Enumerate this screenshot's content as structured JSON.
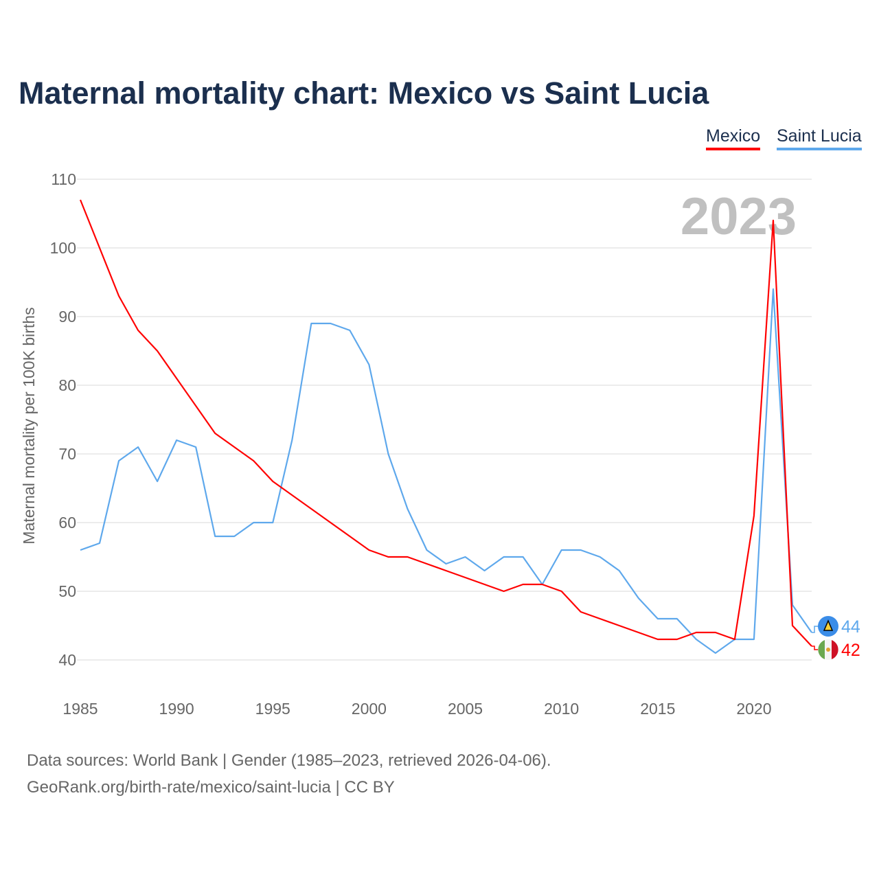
{
  "title": "Maternal mortality chart: Mexico vs Saint Lucia",
  "footer": {
    "line1": "Data sources: World Bank | Gender (1985–2023, retrieved 2026-04-06).",
    "line2": "GeoRank.org/birth-rate/mexico/saint-lucia | CC BY"
  },
  "chart_data": {
    "type": "line",
    "title": "Maternal mortality chart: Mexico vs Saint Lucia",
    "ylabel": "Maternal mortality per 100K births",
    "xlabel": "",
    "year_watermark": "2023",
    "xlim": [
      1985,
      2023
    ],
    "ylim": [
      40,
      110
    ],
    "xticks": [
      1985,
      1990,
      1995,
      2000,
      2005,
      2010,
      2015,
      2020
    ],
    "yticks": [
      40,
      50,
      60,
      70,
      80,
      90,
      100,
      110
    ],
    "grid": true,
    "legend_position": "top-right",
    "x": [
      1985,
      1986,
      1987,
      1988,
      1989,
      1990,
      1991,
      1992,
      1993,
      1994,
      1995,
      1996,
      1997,
      1998,
      1999,
      2000,
      2001,
      2002,
      2003,
      2004,
      2005,
      2006,
      2007,
      2008,
      2009,
      2010,
      2011,
      2012,
      2013,
      2014,
      2015,
      2016,
      2017,
      2018,
      2019,
      2020,
      2021,
      2022,
      2023
    ],
    "series": [
      {
        "name": "Mexico",
        "color": "#ff0000",
        "end_label": "42",
        "flag": "mexico-flag",
        "values": [
          107,
          100,
          93,
          88,
          85,
          81,
          77,
          73,
          71,
          69,
          66,
          64,
          62,
          60,
          58,
          56,
          55,
          55,
          54,
          53,
          52,
          51,
          50,
          51,
          51,
          50,
          47,
          46,
          45,
          44,
          43,
          43,
          44,
          44,
          43,
          61,
          104,
          45,
          42
        ]
      },
      {
        "name": "Saint Lucia",
        "color": "#5ea8ec",
        "end_label": "44",
        "flag": "saint-lucia-flag",
        "values": [
          56,
          57,
          69,
          71,
          66,
          72,
          71,
          58,
          58,
          60,
          60,
          72,
          89,
          89,
          88,
          83,
          70,
          62,
          56,
          54,
          55,
          53,
          55,
          55,
          51,
          56,
          56,
          55,
          53,
          49,
          46,
          46,
          43,
          41,
          43,
          43,
          94,
          48,
          44
        ]
      }
    ]
  }
}
